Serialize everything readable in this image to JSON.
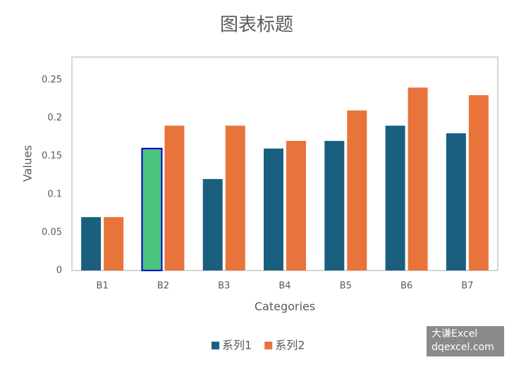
{
  "chart_data": {
    "type": "bar",
    "title": "图表标题",
    "x_label": "Categories",
    "y_label": "Values",
    "categories": [
      "B1",
      "B2",
      "B3",
      "B4",
      "B5",
      "B6",
      "B7"
    ],
    "series": [
      {
        "name": "系列1",
        "color": "#1a5f80",
        "values": [
          0.07,
          0.16,
          0.12,
          0.16,
          0.17,
          0.19,
          0.18
        ],
        "point_colors": [
          "#1a5f80",
          "#4ac47e",
          "#1a5f80",
          "#1a5f80",
          "#1a5f80",
          "#1a5f80",
          "#1a5f80"
        ],
        "point_edgecolors": [
          "none",
          "#0000cc",
          "none",
          "none",
          "none",
          "none",
          "none"
        ]
      },
      {
        "name": "系列2",
        "color": "#e8743b",
        "values": [
          0.07,
          0.19,
          0.19,
          0.17,
          0.21,
          0.24,
          0.23
        ]
      }
    ],
    "ylim": [
      0,
      0.28
    ],
    "yticks": [
      0,
      0.05,
      0.1,
      0.15,
      0.2,
      0.25
    ],
    "grid": false,
    "legend": "bottom"
  },
  "watermark": {
    "line1": "大谦Excel",
    "line2": "dqexcel.com"
  }
}
